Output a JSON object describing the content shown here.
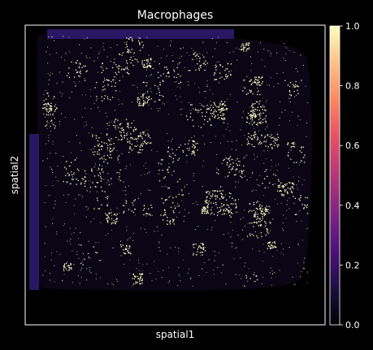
{
  "chart_data": {
    "type": "scatter",
    "title": "Macrophages",
    "xlabel": "spatial1",
    "ylabel": "spatial2",
    "colormap": "magma",
    "colorbar": {
      "vmin": 0.0,
      "vmax": 1.0,
      "ticks": [
        "0.0",
        "0.2",
        "0.4",
        "0.6",
        "0.8",
        "1.0"
      ]
    },
    "x_ticks": [],
    "y_ticks": [],
    "grid": false,
    "background_value": 0.0,
    "highlight_value": 1.0,
    "highlight_color": "#fcfdbf",
    "tissue_color": "#0b0616",
    "edge_band_color": "#2a1763"
  },
  "colors": {
    "figure_background": "#000000",
    "axes_frame": "#ffffff",
    "text": "#ffffff"
  }
}
